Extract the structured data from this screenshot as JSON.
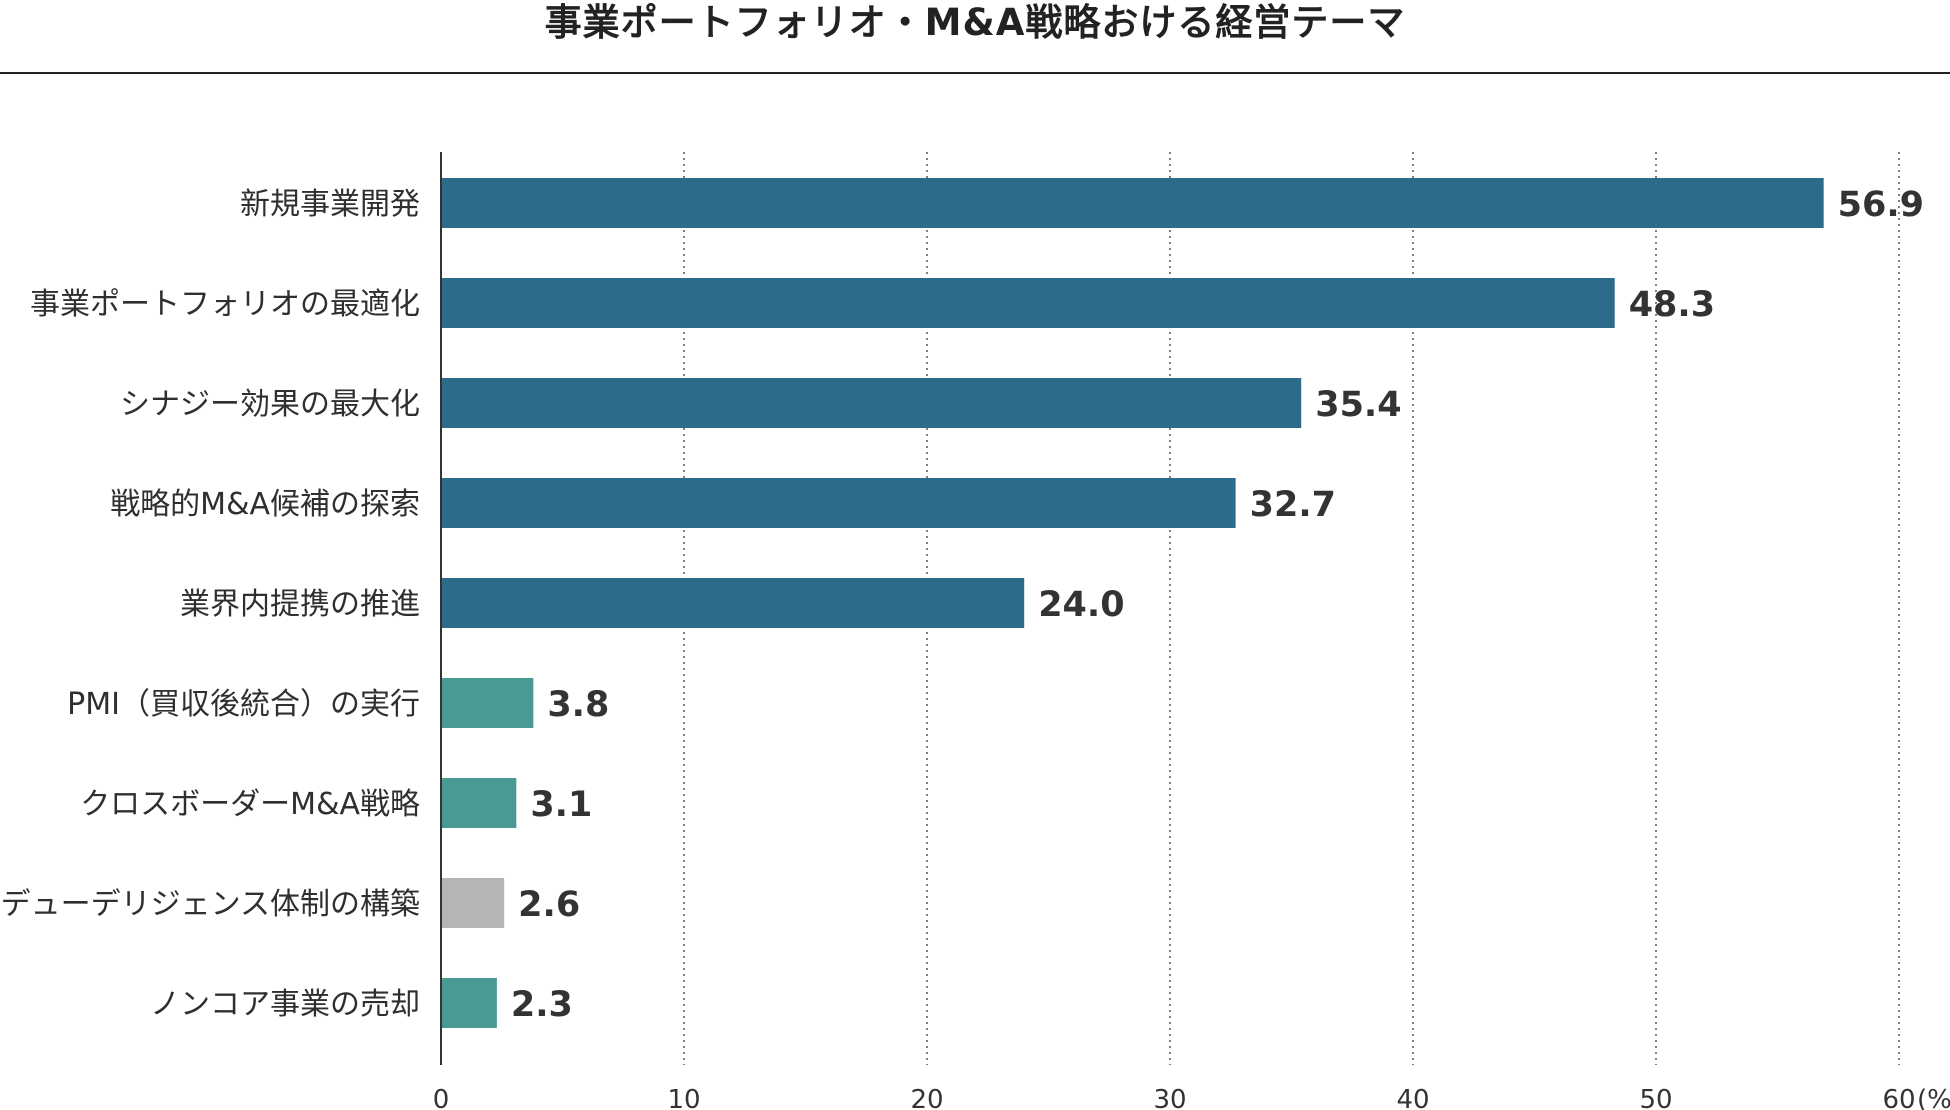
{
  "chart_data": {
    "type": "bar",
    "orientation": "horizontal",
    "title": "事業ポートフォリオ・M&A戦略おける経営テーマ",
    "unit_label": "(%)",
    "categories": [
      "新規事業開発",
      "事業ポートフォリオの最適化",
      "シナジー効果の最大化",
      "戦略的M&A候補の探索",
      "業界内提携の推進",
      "PMI（買収後統合）の実行",
      "クロスボーダーM&A戦略",
      "デューデリジェンス体制の構築",
      "ノンコア事業の売却"
    ],
    "values": [
      56.9,
      48.3,
      35.4,
      32.7,
      24.0,
      3.8,
      3.1,
      2.6,
      2.3
    ],
    "value_labels": [
      "56.9",
      "48.3",
      "35.4",
      "32.7",
      "24.0",
      "3.8",
      "3.1",
      "2.6",
      "2.3"
    ],
    "bar_colors": [
      "#2e6a8a",
      "#2e6a8a",
      "#2e6a8a",
      "#2e6a8a",
      "#2e6a8a",
      "#4a9a94",
      "#4a9a94",
      "#b5b5b5",
      "#4a9a94"
    ],
    "xlim": [
      0,
      60
    ],
    "ticks": [
      0,
      10,
      20,
      30,
      40,
      50,
      60
    ],
    "tick_labels": [
      "0",
      "10",
      "20",
      "30",
      "40",
      "50",
      "60"
    ],
    "grid": "vertical-dotted",
    "xlabel": "",
    "ylabel": ""
  }
}
